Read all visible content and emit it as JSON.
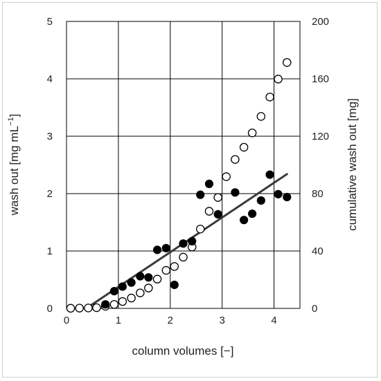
{
  "chart_data": {
    "type": "scatter",
    "xlabel": "column volumes [−]",
    "ylabel_left": "wash out [mg mL",
    "ylabel_left_sup": "−1",
    "ylabel_left_end": "]",
    "ylabel_right": "cumulative wash out [mg]",
    "xlim": [
      0,
      4.5
    ],
    "ylim_left": [
      0,
      5
    ],
    "ylim_right": [
      0,
      200
    ],
    "x_ticks": [
      "0",
      "1",
      "2",
      "3",
      "4"
    ],
    "y_left_ticks": [
      "0",
      "1",
      "2",
      "3",
      "4",
      "5"
    ],
    "y_right_ticks": [
      "0",
      "40",
      "80",
      "120",
      "160",
      "200"
    ],
    "grid": true,
    "series": [
      {
        "axis": "left",
        "marker": "filled-circle",
        "points": [
          [
            0.75,
            0.07
          ],
          [
            0.92,
            0.3
          ],
          [
            1.08,
            0.38
          ],
          [
            1.25,
            0.45
          ],
          [
            1.42,
            0.56
          ],
          [
            1.58,
            0.54
          ],
          [
            1.75,
            1.02
          ],
          [
            1.92,
            1.05
          ],
          [
            2.08,
            0.41
          ],
          [
            2.25,
            1.13
          ],
          [
            2.42,
            1.17
          ],
          [
            2.58,
            1.98
          ],
          [
            2.75,
            2.17
          ],
          [
            2.92,
            1.64
          ],
          [
            3.25,
            2.02
          ],
          [
            3.42,
            1.54
          ],
          [
            3.58,
            1.65
          ],
          [
            3.75,
            1.88
          ],
          [
            3.92,
            2.33
          ],
          [
            4.08,
            1.99
          ],
          [
            4.25,
            1.94
          ]
        ]
      },
      {
        "axis": "right",
        "marker": "open-circle",
        "points": [
          [
            0.08,
            0.1
          ],
          [
            0.25,
            0.2
          ],
          [
            0.42,
            0.3
          ],
          [
            0.58,
            0.5
          ],
          [
            0.75,
            1.5
          ],
          [
            0.92,
            2.8
          ],
          [
            1.08,
            4.8
          ],
          [
            1.25,
            7.2
          ],
          [
            1.42,
            10.8
          ],
          [
            1.58,
            14.2
          ],
          [
            1.75,
            20.4
          ],
          [
            1.92,
            26.5
          ],
          [
            2.08,
            29.2
          ],
          [
            2.25,
            35.7
          ],
          [
            2.42,
            42.8
          ],
          [
            2.58,
            55.3
          ],
          [
            2.75,
            67.7
          ],
          [
            2.92,
            77.3
          ],
          [
            3.08,
            91.8
          ],
          [
            3.25,
            103.8
          ],
          [
            3.42,
            112.3
          ],
          [
            3.58,
            122.3
          ],
          [
            3.75,
            133.8
          ],
          [
            3.92,
            147.3
          ],
          [
            4.08,
            159.8
          ],
          [
            4.25,
            171.4
          ]
        ]
      },
      {
        "axis": "left",
        "marker": "line",
        "points": [
          [
            0.38,
            0.0
          ],
          [
            4.25,
            2.34
          ]
        ]
      }
    ]
  }
}
